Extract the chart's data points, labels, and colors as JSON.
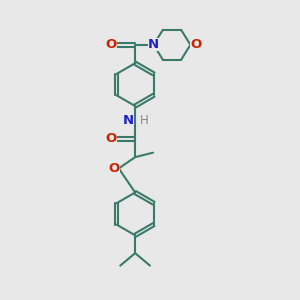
{
  "background_color": "#e8e8e8",
  "bond_color": "#3a7a6a",
  "bond_width": 1.5,
  "N_color": "#2020cc",
  "O_color": "#cc2200",
  "H_color": "#888888",
  "font_size": 8.5,
  "fig_w": 3.0,
  "fig_h": 3.0,
  "dpi": 100,
  "xlim": [
    0,
    10
  ],
  "ylim": [
    0,
    10
  ]
}
